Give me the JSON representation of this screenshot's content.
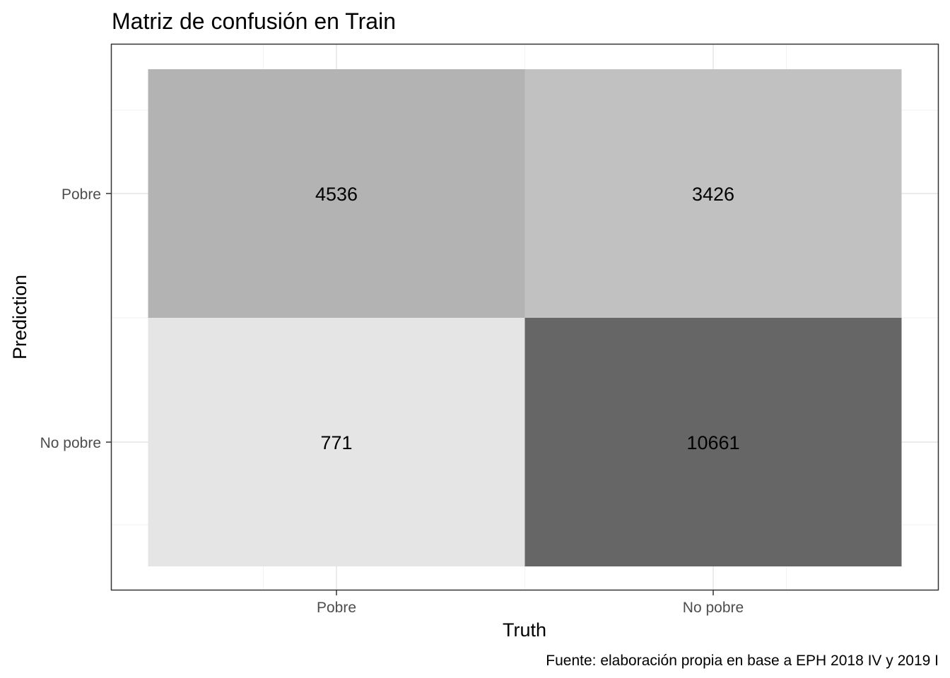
{
  "chart_data": {
    "type": "heatmap",
    "title": "Matriz de confusión en Train",
    "xlabel": "Truth",
    "ylabel": "Prediction",
    "x_categories": [
      "Pobre",
      "No pobre"
    ],
    "y_categories": [
      "Pobre",
      "No pobre"
    ],
    "cells": [
      {
        "truth": "Pobre",
        "prediction": "Pobre",
        "value": 4536,
        "fill": "#b3b3b3"
      },
      {
        "truth": "No pobre",
        "prediction": "Pobre",
        "value": 3426,
        "fill": "#c1c1c1"
      },
      {
        "truth": "Pobre",
        "prediction": "No pobre",
        "value": 771,
        "fill": "#e5e5e5"
      },
      {
        "truth": "No pobre",
        "prediction": "No pobre",
        "value": 10661,
        "fill": "#666666"
      }
    ],
    "grid": true,
    "caption": "Fuente: elaboración propia en base a EPH 2018 IV y 2019 I"
  }
}
